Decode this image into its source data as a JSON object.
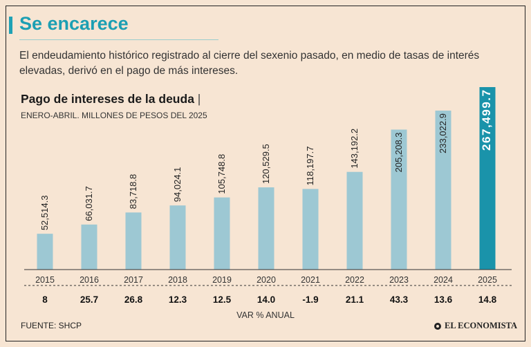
{
  "header": {
    "title": "Se encarece",
    "subtitle": "El endeudamiento histórico registrado al cierre del sexenio pasado, en medio de tasas de interés elevadas, derivó en el pago de más intereses."
  },
  "colors": {
    "accent": "#1c9fb3",
    "bar": "#9dc8d3",
    "bar_highlight": "#1a93aa",
    "background": "#f7e5d3"
  },
  "chart_data": {
    "type": "bar",
    "title": "Pago de intereses de la deuda",
    "title_separator": "|",
    "subtitle": "ENERO-ABRIL. MILLONES DE PESOS DEL 2025",
    "categories": [
      "2015",
      "2016",
      "2017",
      "2018",
      "2019",
      "2020",
      "2021",
      "2022",
      "2023",
      "2024",
      "2025"
    ],
    "values": [
      52514.3,
      66031.7,
      83718.8,
      94024.1,
      105748.8,
      120529.5,
      118197.7,
      143192.2,
      205208.3,
      233022.9,
      267499.7
    ],
    "value_labels": [
      "52,514.3",
      "66,031.7",
      "83,718.8",
      "94,024.1",
      "105,748.8",
      "120,529.5",
      "118,197.7",
      "143,192.2",
      "205,208.3",
      "233,022.9",
      "267,499.7"
    ],
    "highlight": "2025",
    "ylim": [
      0,
      267499.7
    ],
    "grid": false,
    "secondary_row": {
      "label": "VAR % ANUAL",
      "values": [
        "8",
        "25.7",
        "26.8",
        "12.3",
        "12.5",
        "14.0",
        "-1.9",
        "21.1",
        "43.3",
        "13.6",
        "14.8"
      ]
    }
  },
  "footer": {
    "source": "FUENTE: SHCP",
    "brand": "EL ECONOMISTA",
    "brand_icon": "el-economista-logo-icon"
  }
}
